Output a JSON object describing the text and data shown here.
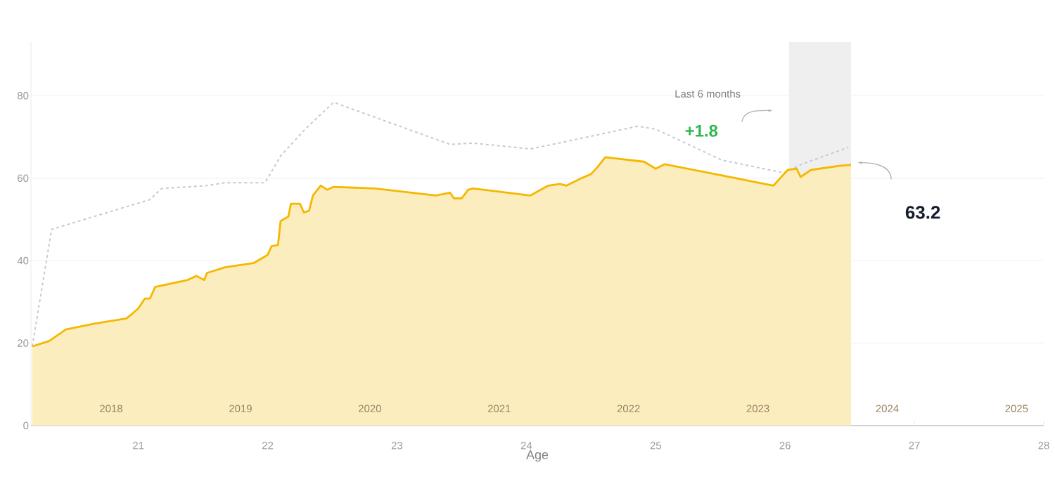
{
  "chart_data": {
    "type": "area",
    "xlabel": "Age",
    "xlim": [
      20.17,
      28
    ],
    "xticks": [
      21,
      22,
      23,
      24,
      25,
      26,
      27,
      28
    ],
    "ylim": [
      0,
      93
    ],
    "yticks": [
      0,
      20,
      40,
      60,
      80
    ],
    "x2lim": [
      2017.38,
      2025.21
    ],
    "x2ticks": [
      2018,
      2019,
      2020,
      2021,
      2022,
      2023,
      2024,
      2025
    ],
    "grid": "y",
    "series": [
      {
        "type": "line",
        "color": "#c3cad6",
        "line_style": "dotted",
        "x": [
          20.18,
          20.33,
          21.09,
          21.18,
          21.53,
          21.67,
          21.98,
          22.1,
          22.29,
          22.51,
          23.41,
          23.59,
          24.03,
          24.25,
          24.86,
          25.0,
          25.51,
          25.99,
          26.13,
          26.49
        ],
        "values": [
          19.2,
          47.6,
          54.8,
          57.5,
          58.2,
          58.9,
          58.9,
          65.4,
          71.9,
          78.4,
          68.2,
          68.5,
          67.1,
          68.5,
          72.6,
          71.9,
          64.4,
          61.3,
          63.4,
          67.5
        ]
      },
      {
        "type": "area",
        "color": "#f5b800",
        "line_style": "solid",
        "x": [
          20.18,
          20.31,
          20.44,
          20.66,
          20.91,
          21.0,
          21.05,
          21.09,
          21.13,
          21.38,
          21.45,
          21.51,
          21.53,
          21.67,
          21.89,
          22.0,
          22.03,
          22.08,
          22.1,
          22.16,
          22.18,
          22.25,
          22.28,
          22.32,
          22.35,
          22.41,
          22.46,
          22.51,
          22.83,
          23.3,
          23.41,
          23.44,
          23.5,
          23.55,
          23.59,
          24.03,
          24.17,
          24.26,
          24.31,
          24.42,
          24.5,
          24.55,
          24.61,
          24.91,
          25.0,
          25.07,
          25.91,
          26.02,
          26.09,
          26.12,
          26.2,
          26.42,
          26.51
        ],
        "values": [
          19.2,
          20.5,
          23.3,
          24.7,
          26.0,
          28.4,
          30.8,
          30.8,
          33.6,
          35.3,
          36.3,
          35.3,
          37.0,
          38.4,
          39.4,
          41.4,
          43.5,
          43.8,
          49.6,
          50.7,
          53.8,
          53.8,
          51.7,
          52.1,
          55.8,
          58.2,
          57.2,
          57.9,
          57.5,
          55.8,
          56.5,
          55.1,
          55.1,
          57.2,
          57.5,
          55.8,
          58.2,
          58.6,
          58.2,
          59.9,
          61.0,
          62.7,
          65.1,
          64.0,
          62.3,
          63.4,
          58.2,
          62.0,
          62.3,
          60.3,
          62.0,
          63.0,
          63.2
        ]
      }
    ],
    "bands": [
      {
        "axis": "x",
        "from": 26.03,
        "to": 26.51,
        "color": "#efefef"
      }
    ],
    "annotations": [
      "Last 6 months",
      "+1.8",
      "63.2"
    ]
  }
}
